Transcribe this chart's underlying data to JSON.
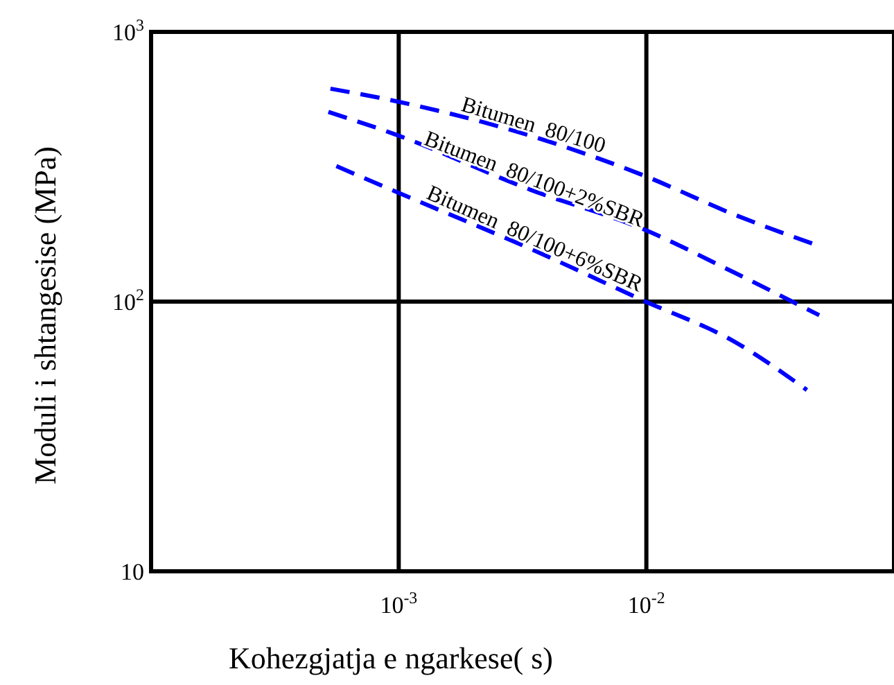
{
  "chart_data": {
    "type": "line",
    "xlabel": "Kohezgjatja e ngarkese( s)",
    "ylabel": "Moduli i shtangesise (MPa)",
    "log": "xy",
    "grid": true,
    "line_style": "dashed",
    "xlim": [
      0.0001,
      0.1
    ],
    "ylim": [
      10,
      1000
    ],
    "xticks": [
      {
        "value": 0.001,
        "label": "10$^{-3}$"
      },
      {
        "value": 0.01,
        "label": "10$^{-2}$"
      }
    ],
    "yticks": [
      10,
      {
        "value": 100,
        "label": "10$^{2}$"
      },
      {
        "value": 1000,
        "label": "10$^{3}$"
      }
    ],
    "series": [
      {
        "name": "Bitumen  80/100",
        "color": "#0000ff",
        "x": [
          0.00053,
          0.00096,
          0.0034,
          0.0098,
          0.0227,
          0.0487
        ],
        "values": [
          616,
          555,
          412,
          293,
          210,
          162
        ]
      },
      {
        "name": "Bitumen  80/100+2%SBR",
        "color": "#0000ff",
        "x": [
          0.00052,
          0.00096,
          0.0034,
          0.0098,
          0.0227,
          0.0499
        ],
        "values": [
          505,
          418,
          260,
          185,
          128,
          89
        ]
      },
      {
        "name": "Bitumen  80/100+6%SBR",
        "color": "#0000ff",
        "x": [
          0.00056,
          0.00096,
          0.0034,
          0.0097,
          0.0227,
          0.0445
        ],
        "values": [
          318,
          257,
          157,
          101,
          71,
          47
        ]
      }
    ]
  }
}
